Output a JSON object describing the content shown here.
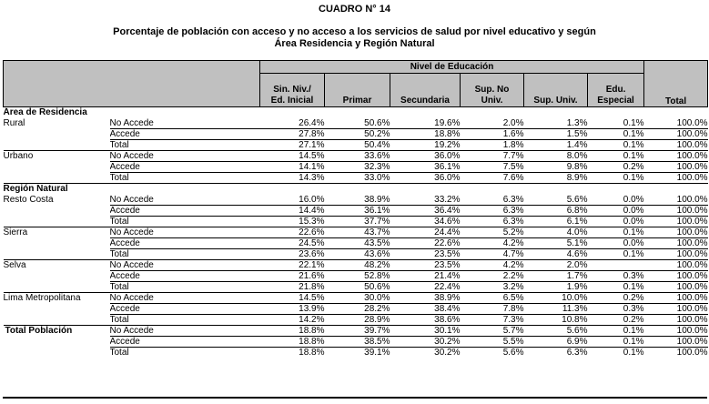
{
  "title": "CUADRO N° 14",
  "subtitle_line1": "Porcentaje de población con acceso y no acceso a los servicios de salud por nivel educativo y según",
  "subtitle_line2": "Área Residencia y Región Natural",
  "colors": {
    "header_background": "#c0c0c0",
    "border": "#000000",
    "text": "#000000",
    "page_background": "#ffffff"
  },
  "table": {
    "band_header": "Nivel de Educación",
    "total_header": "Total",
    "columns": [
      {
        "line1": "Sin. Niv./",
        "line2": "Ed. Inicial"
      },
      {
        "line1": "",
        "line2": "Primar"
      },
      {
        "line1": "",
        "line2": "Secundaria"
      },
      {
        "line1": "Sup. No",
        "line2": "Univ."
      },
      {
        "line1": "",
        "line2": "Sup. Univ."
      },
      {
        "line1": "Edu.",
        "line2": "Especial"
      }
    ],
    "rows": [
      {
        "kind": "section",
        "label": "Área de Residencia"
      },
      {
        "kind": "data",
        "region": "Rural",
        "access": "No Accede",
        "values": [
          "26.4%",
          "50.6%",
          "19.6%",
          "2.0%",
          "1.3%",
          "0.1%",
          "100.0%"
        ],
        "sep": "row"
      },
      {
        "kind": "data",
        "region": "",
        "access": "Accede",
        "values": [
          "27.8%",
          "50.2%",
          "18.8%",
          "1.6%",
          "1.5%",
          "0.1%",
          "100.0%"
        ],
        "sep": "row"
      },
      {
        "kind": "data",
        "region": "",
        "access": "Total",
        "values": [
          "27.1%",
          "50.4%",
          "19.2%",
          "1.8%",
          "1.4%",
          "0.1%",
          "100.0%"
        ],
        "sep": "group"
      },
      {
        "kind": "data",
        "region": "Urbano",
        "access": "No Accede",
        "values": [
          "14.5%",
          "33.6%",
          "36.0%",
          "7.7%",
          "8.0%",
          "0.1%",
          "100.0%"
        ],
        "sep": "row"
      },
      {
        "kind": "data",
        "region": "",
        "access": "Accede",
        "values": [
          "14.1%",
          "32.3%",
          "36.1%",
          "7.5%",
          "9.8%",
          "0.2%",
          "100.0%"
        ],
        "sep": "row"
      },
      {
        "kind": "data",
        "region": "",
        "access": "Total",
        "values": [
          "14.3%",
          "33.0%",
          "36.0%",
          "7.6%",
          "8.9%",
          "0.1%",
          "100.0%"
        ],
        "sep": "group"
      },
      {
        "kind": "section",
        "label": "Región Natural"
      },
      {
        "kind": "data",
        "region": "Resto Costa",
        "access": "No Accede",
        "values": [
          "16.0%",
          "38.9%",
          "33.2%",
          "6.3%",
          "5.6%",
          "0.0%",
          "100.0%"
        ],
        "sep": "row"
      },
      {
        "kind": "data",
        "region": "",
        "access": "Accede",
        "values": [
          "14.4%",
          "36.1%",
          "36.4%",
          "6.3%",
          "6.8%",
          "0.0%",
          "100.0%"
        ],
        "sep": "row"
      },
      {
        "kind": "data",
        "region": "",
        "access": "Total",
        "values": [
          "15.3%",
          "37.7%",
          "34.6%",
          "6.3%",
          "6.1%",
          "0.0%",
          "100.0%"
        ],
        "sep": "group"
      },
      {
        "kind": "data",
        "region": "Sierra",
        "access": "No Accede",
        "values": [
          "22.6%",
          "43.7%",
          "24.4%",
          "5.2%",
          "4.0%",
          "0.1%",
          "100.0%"
        ],
        "sep": "row"
      },
      {
        "kind": "data",
        "region": "",
        "access": "Accede",
        "values": [
          "24.5%",
          "43.5%",
          "22.6%",
          "4.2%",
          "5.1%",
          "0.0%",
          "100.0%"
        ],
        "sep": "row"
      },
      {
        "kind": "data",
        "region": "",
        "access": "Total",
        "values": [
          "23.6%",
          "43.6%",
          "23.5%",
          "4.7%",
          "4.6%",
          "0.1%",
          "100.0%"
        ],
        "sep": "group"
      },
      {
        "kind": "data",
        "region": "Selva",
        "access": "No Accede",
        "values": [
          "22.1%",
          "48.2%",
          "23.5%",
          "4.2%",
          "2.0%",
          "",
          "100.0%"
        ],
        "sep": "row"
      },
      {
        "kind": "data",
        "region": "",
        "access": "Accede",
        "values": [
          "21.6%",
          "52.8%",
          "21.4%",
          "2.2%",
          "1.7%",
          "0.3%",
          "100.0%"
        ],
        "sep": "row"
      },
      {
        "kind": "data",
        "region": "",
        "access": "Total",
        "values": [
          "21.8%",
          "50.6%",
          "22.4%",
          "3.2%",
          "1.9%",
          "0.1%",
          "100.0%"
        ],
        "sep": "group"
      },
      {
        "kind": "data",
        "region": "Lima Metropolitana",
        "access": "No Accede",
        "values": [
          "14.5%",
          "30.0%",
          "38.9%",
          "6.5%",
          "10.0%",
          "0.2%",
          "100.0%"
        ],
        "sep": "row"
      },
      {
        "kind": "data",
        "region": "",
        "access": "Accede",
        "values": [
          "13.9%",
          "28.2%",
          "38.4%",
          "7.8%",
          "11.3%",
          "0.3%",
          "100.0%"
        ],
        "sep": "row"
      },
      {
        "kind": "data",
        "region": "",
        "access": "Total",
        "values": [
          "14.2%",
          "28.9%",
          "38.6%",
          "7.3%",
          "10.8%",
          "0.2%",
          "100.0%"
        ],
        "sep": "group"
      },
      {
        "kind": "data",
        "region": "Total Población",
        "region_bold": true,
        "access": "No Accede",
        "values": [
          "18.8%",
          "39.7%",
          "30.1%",
          "5.7%",
          "5.6%",
          "0.1%",
          "100.0%"
        ],
        "sep": "row"
      },
      {
        "kind": "data",
        "region": "",
        "access": "Accede",
        "values": [
          "18.8%",
          "38.5%",
          "30.2%",
          "5.5%",
          "6.9%",
          "0.1%",
          "100.0%"
        ],
        "sep": "row"
      },
      {
        "kind": "data",
        "region": "",
        "access": "Total",
        "values": [
          "18.8%",
          "39.1%",
          "30.2%",
          "5.6%",
          "6.3%",
          "0.1%",
          "100.0%"
        ],
        "sep": "none"
      }
    ]
  }
}
